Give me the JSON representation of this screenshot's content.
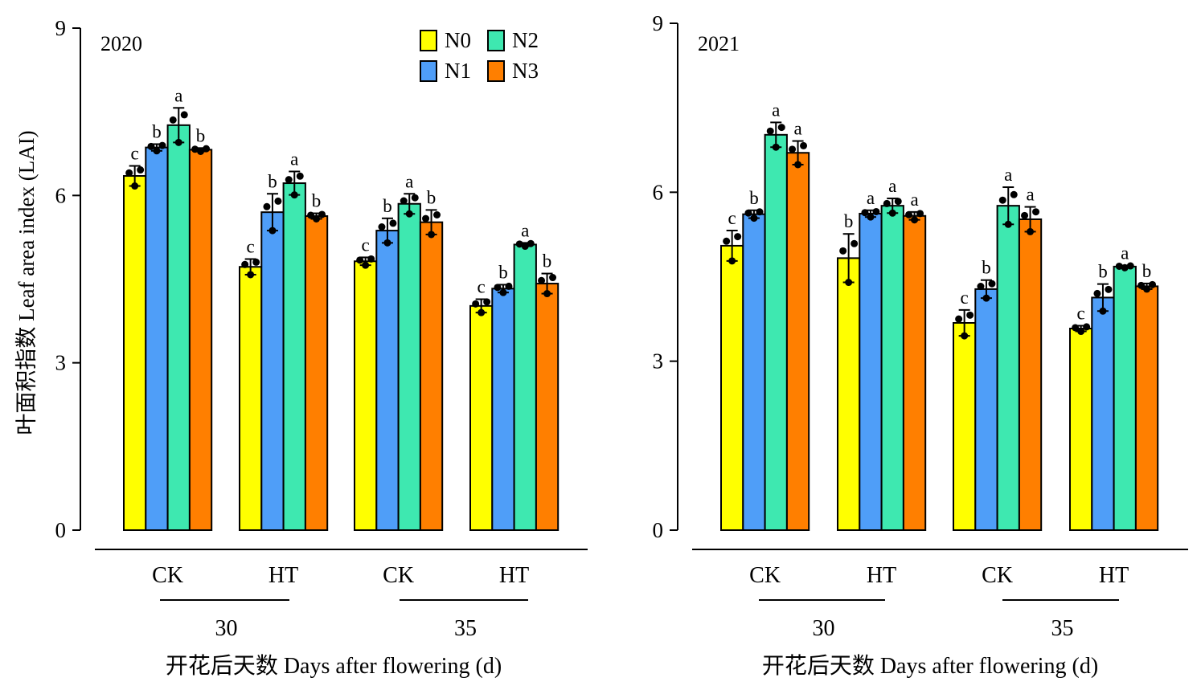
{
  "chart_data": [
    {
      "type": "bar",
      "title": "2020",
      "ylabel": "叶面积指数  Leaf area index (LAI)",
      "xlabel": "开花后天数 Days after flowering (d)",
      "ylim": [
        0,
        9
      ],
      "yticks": [
        "0",
        "3",
        "6",
        "9"
      ],
      "groups": [
        {
          "treatment": "CK",
          "day": "30"
        },
        {
          "treatment": "HT",
          "day": "30"
        },
        {
          "treatment": "CK",
          "day": "35"
        },
        {
          "treatment": "HT",
          "day": "35"
        }
      ],
      "day_labels": [
        "30",
        "35"
      ],
      "series": [
        {
          "name": "N0",
          "color": "#ffff00",
          "values": [
            6.35,
            4.72,
            4.82,
            4.02
          ],
          "errors": [
            0.18,
            0.14,
            0.07,
            0.12
          ],
          "letters": [
            "c",
            "c",
            "c",
            "c"
          ]
        },
        {
          "name": "N1",
          "color": "#4f9ef8",
          "values": [
            6.86,
            5.7,
            5.37,
            4.33
          ],
          "errors": [
            0.06,
            0.33,
            0.22,
            0.07
          ],
          "letters": [
            "b",
            "b",
            "b",
            "b"
          ]
        },
        {
          "name": "N2",
          "color": "#3ee8b0",
          "values": [
            7.26,
            6.22,
            5.85,
            5.12
          ],
          "errors": [
            0.31,
            0.21,
            0.18,
            0.03
          ],
          "letters": [
            "a",
            "a",
            "a",
            "a"
          ]
        },
        {
          "name": "N3",
          "color": "#ff7f00",
          "values": [
            6.82,
            5.63,
            5.52,
            4.42
          ],
          "errors": [
            0.03,
            0.05,
            0.22,
            0.18
          ],
          "letters": [
            "b",
            "b",
            "b",
            "b"
          ]
        }
      ]
    },
    {
      "type": "bar",
      "title": "2021",
      "ylabel": "",
      "xlabel": "开花后天数 Days after flowering (d)",
      "ylim": [
        0,
        9
      ],
      "yticks": [
        "0",
        "3",
        "6",
        "9"
      ],
      "groups": [
        {
          "treatment": "CK",
          "day": "30"
        },
        {
          "treatment": "HT",
          "day": "30"
        },
        {
          "treatment": "CK",
          "day": "35"
        },
        {
          "treatment": "HT",
          "day": "35"
        }
      ],
      "day_labels": [
        "30",
        "35"
      ],
      "series": [
        {
          "name": "N0",
          "color": "#ffff00",
          "values": [
            5.05,
            4.83,
            3.68,
            3.58
          ],
          "errors": [
            0.27,
            0.43,
            0.23,
            0.05
          ],
          "letters": [
            "c",
            "b",
            "c",
            "c"
          ]
        },
        {
          "name": "N1",
          "color": "#4f9ef8",
          "values": [
            5.61,
            5.62,
            4.28,
            4.13
          ],
          "errors": [
            0.07,
            0.06,
            0.16,
            0.24
          ],
          "letters": [
            "b",
            "a",
            "b",
            "b"
          ]
        },
        {
          "name": "N2",
          "color": "#3ee8b0",
          "values": [
            7.02,
            5.76,
            5.76,
            4.68
          ],
          "errors": [
            0.22,
            0.13,
            0.33,
            0.02
          ],
          "letters": [
            "a",
            "a",
            "a",
            "a"
          ]
        },
        {
          "name": "N3",
          "color": "#ff7f00",
          "values": [
            6.7,
            5.58,
            5.52,
            4.33
          ],
          "errors": [
            0.21,
            0.07,
            0.22,
            0.05
          ],
          "letters": [
            "a",
            "a",
            "a",
            "b"
          ]
        }
      ]
    }
  ],
  "legend": {
    "position": "top-right",
    "entries": [
      {
        "name": "N0",
        "color": "#ffff00"
      },
      {
        "name": "N2",
        "color": "#3ee8b0"
      },
      {
        "name": "N1",
        "color": "#4f9ef8"
      },
      {
        "name": "N3",
        "color": "#ff7f00"
      }
    ]
  }
}
